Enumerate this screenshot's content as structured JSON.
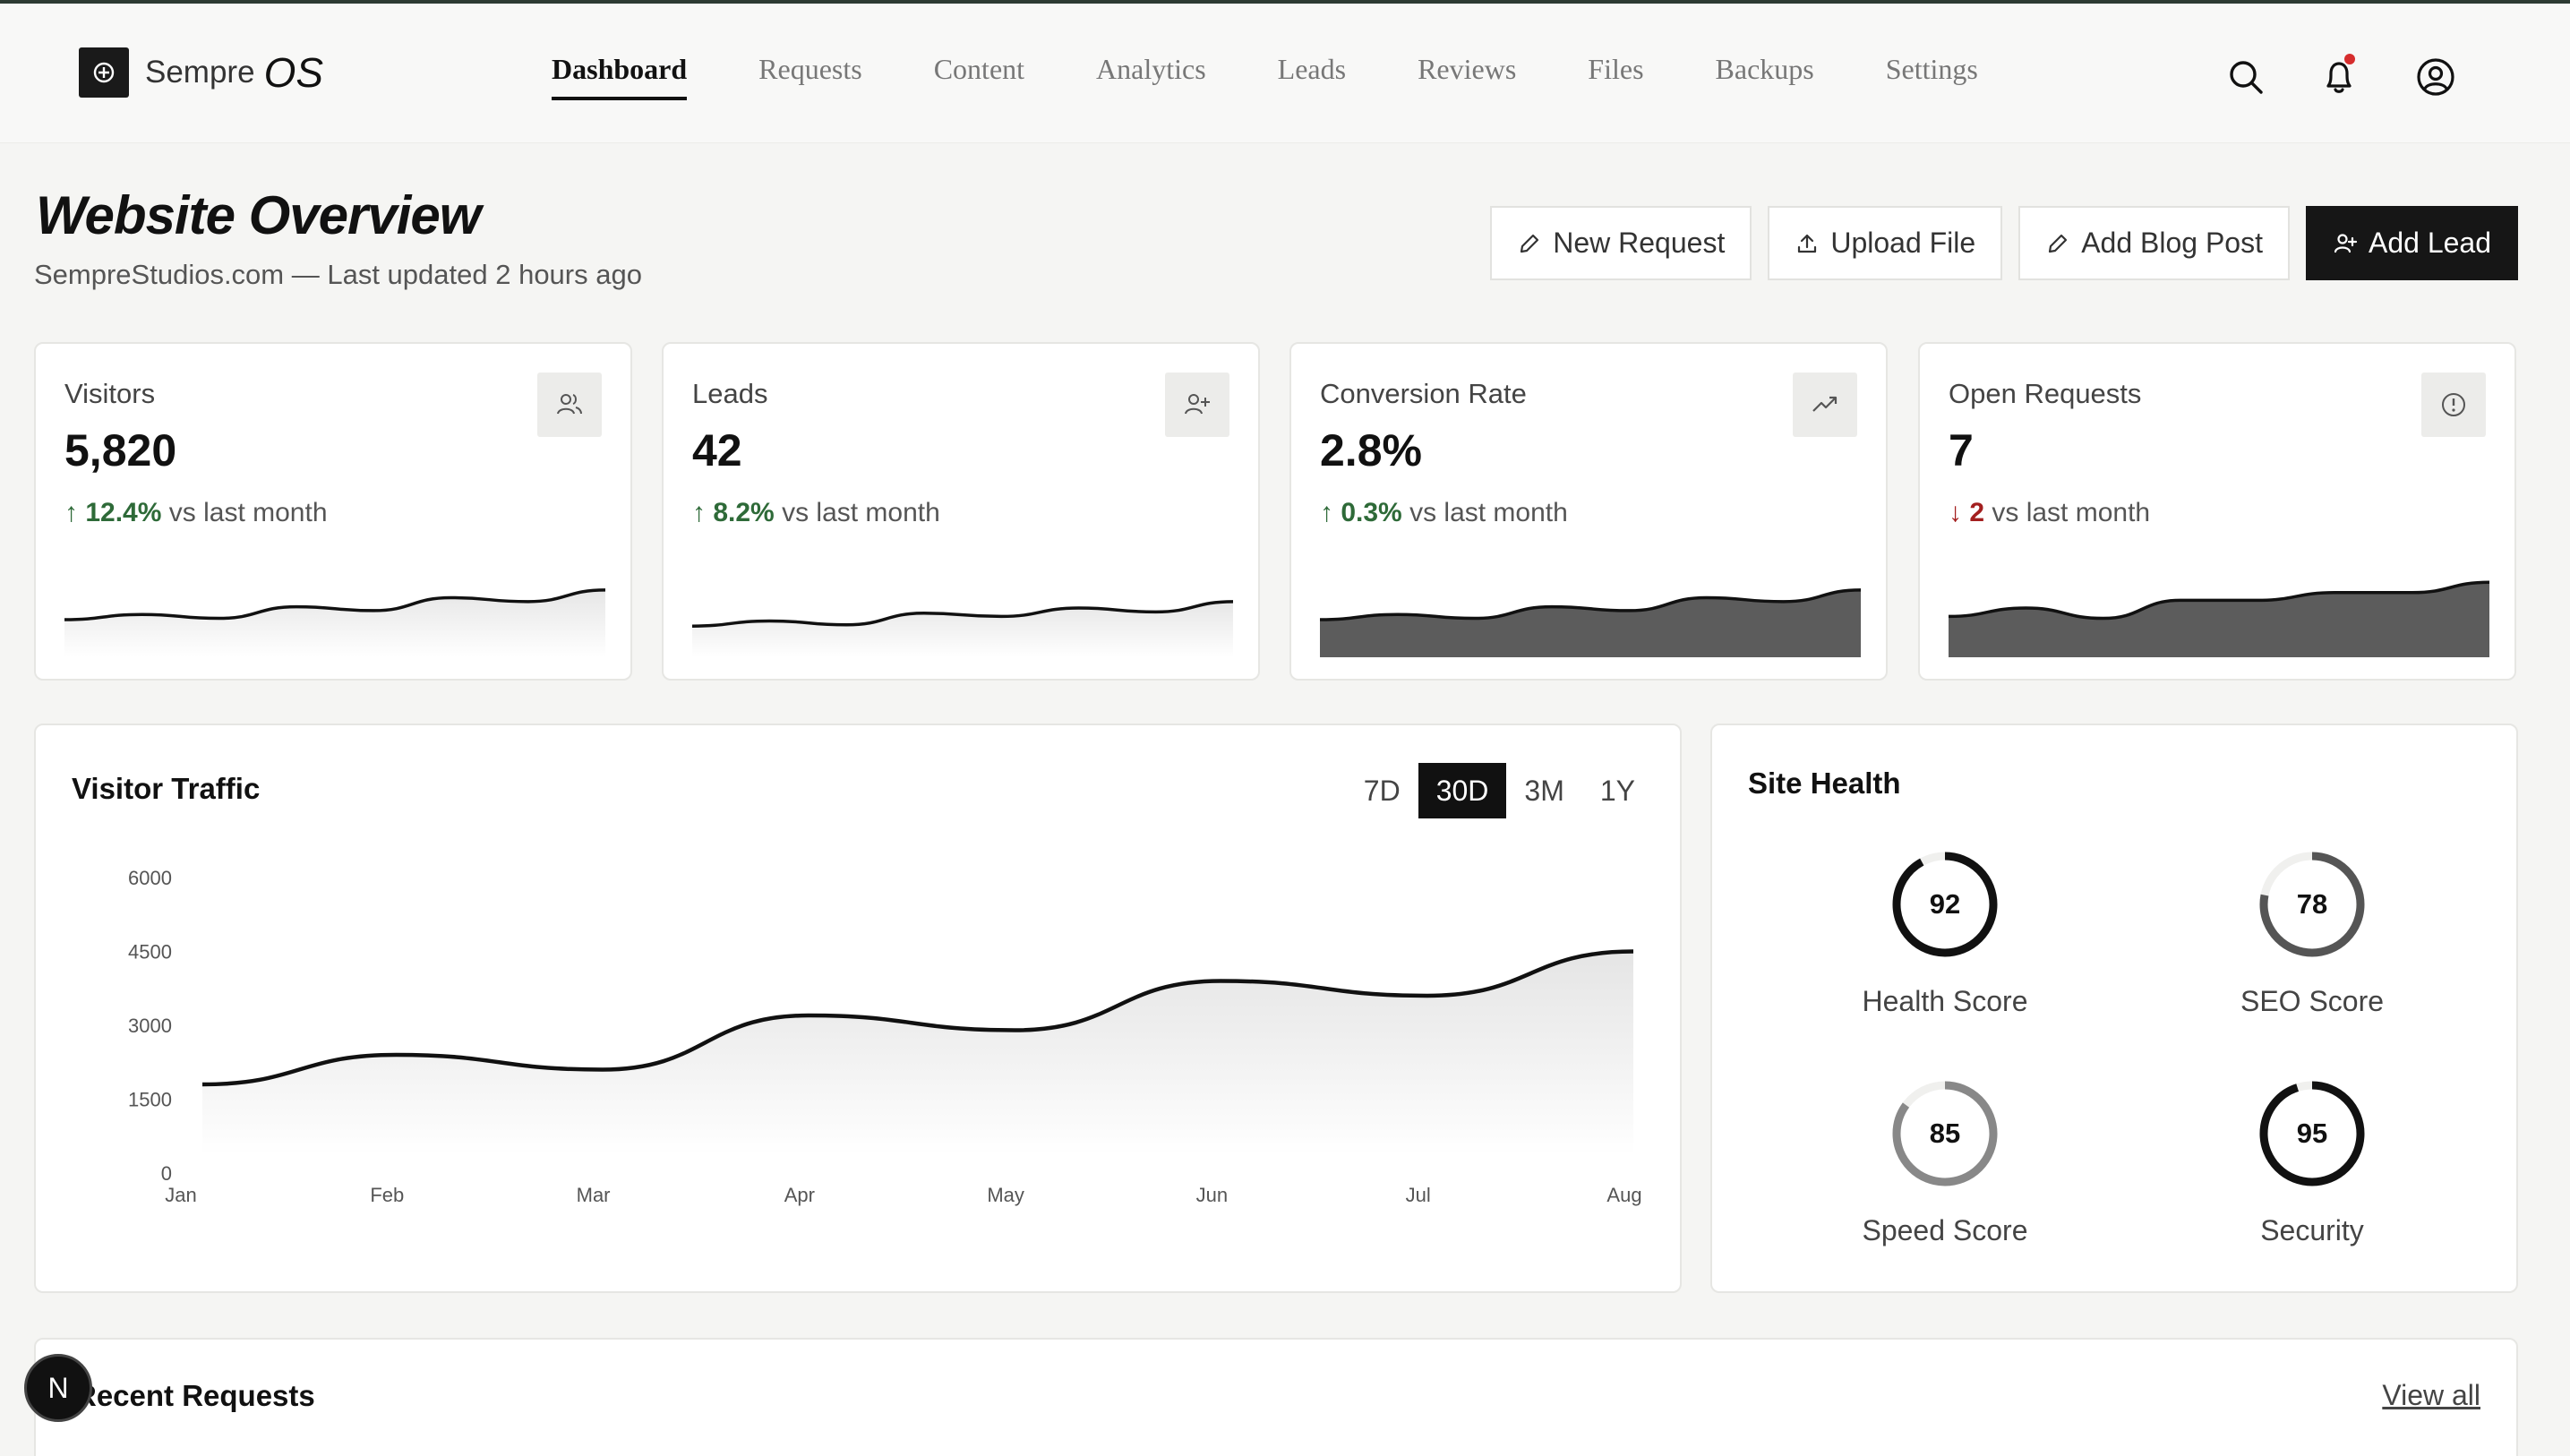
{
  "app": {
    "brand": "Sempre",
    "brand_suffix": "OS"
  },
  "nav": {
    "items": [
      {
        "label": "Dashboard",
        "active": true
      },
      {
        "label": "Requests"
      },
      {
        "label": "Content"
      },
      {
        "label": "Analytics"
      },
      {
        "label": "Leads"
      },
      {
        "label": "Reviews"
      },
      {
        "label": "Files"
      },
      {
        "label": "Backups"
      },
      {
        "label": "Settings"
      }
    ]
  },
  "header_icons": [
    "search-icon",
    "bell-icon",
    "user-icon"
  ],
  "page": {
    "title": "Website Overview",
    "subtitle": "SempreStudios.com — Last updated 2 hours ago"
  },
  "actions": {
    "new_request": "New Request",
    "upload_file": "Upload File",
    "add_blog_post": "Add Blog Post",
    "add_lead": "Add Lead"
  },
  "stats": [
    {
      "label": "Visitors",
      "value": "5,820",
      "arrow": "↑",
      "delta": "12.4%",
      "delta_suffix": "vs last month",
      "direction": "up",
      "icon": "users-icon",
      "spark": [
        50,
        58,
        52,
        70,
        64,
        84,
        78,
        96
      ]
    },
    {
      "label": "Leads",
      "value": "42",
      "arrow": "↑",
      "delta": "8.2%",
      "delta_suffix": "vs last month",
      "direction": "up",
      "icon": "user-plus-icon",
      "spark": [
        40,
        48,
        42,
        60,
        55,
        68,
        62,
        78
      ]
    },
    {
      "label": "Conversion Rate",
      "value": "2.8%",
      "arrow": "↑",
      "delta": "0.3%",
      "delta_suffix": "vs last month",
      "direction": "up",
      "icon": "trending-up-icon",
      "spark": [
        50,
        58,
        52,
        70,
        64,
        84,
        78,
        96
      ]
    },
    {
      "label": "Open Requests",
      "value": "7",
      "arrow": "↓",
      "delta": "2",
      "delta_suffix": "vs last month",
      "direction": "down",
      "icon": "alert-circle-icon",
      "spark": [
        55,
        68,
        52,
        80,
        80,
        92,
        92,
        108
      ]
    }
  ],
  "traffic": {
    "title": "Visitor Traffic",
    "ranges": [
      "7D",
      "30D",
      "3M",
      "1Y"
    ],
    "active_range": "30D"
  },
  "chart_data": {
    "type": "area",
    "categories": [
      "Jan",
      "Feb",
      "Mar",
      "Apr",
      "May",
      "Jun",
      "Jul",
      "Aug"
    ],
    "values": [
      1800,
      2400,
      2100,
      3200,
      2900,
      3900,
      3600,
      4500
    ],
    "yticks": [
      0,
      1500,
      3000,
      4500,
      6000
    ],
    "ylim": [
      0,
      6000
    ],
    "grid": false,
    "legend": "none"
  },
  "health": {
    "title": "Site Health",
    "gauges": [
      {
        "value": "92",
        "label": "Health Score",
        "fraction": 0.92,
        "color": "#111111"
      },
      {
        "value": "78",
        "label": "SEO Score",
        "fraction": 0.78,
        "color": "#555555"
      },
      {
        "value": "85",
        "label": "Speed Score",
        "fraction": 0.85,
        "color": "#888888"
      },
      {
        "value": "95",
        "label": "Security",
        "fraction": 0.95,
        "color": "#111111"
      }
    ]
  },
  "recent": {
    "title": "Recent Requests",
    "view_all": "View all"
  },
  "fab": {
    "label": "N"
  }
}
